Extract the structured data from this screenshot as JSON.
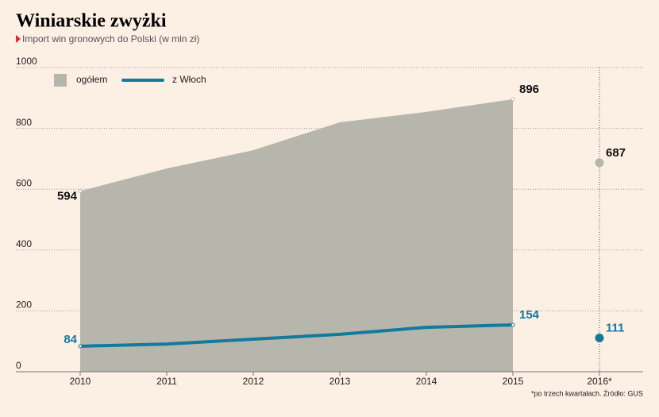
{
  "chart_data": {
    "type": "area-line",
    "title": "Winiarskie zwyżki",
    "subtitle": "Import win gronowych do Polski (w mln zł)",
    "footnote": "*po trzech kwartałach. Źródło: GUS",
    "categories": [
      "2010",
      "2011",
      "2012",
      "2013",
      "2014",
      "2015",
      "2016*"
    ],
    "series": [
      {
        "name": "ogółem",
        "kind": "area",
        "color": "#b7b6ac",
        "values": [
          594,
          668,
          728,
          820,
          854,
          896,
          687
        ]
      },
      {
        "name": "z Włoch",
        "kind": "line",
        "color": "#137a9e",
        "values": [
          84,
          91,
          107,
          123,
          146,
          154,
          111
        ]
      }
    ],
    "dot_from": 6,
    "data_labels": [
      0,
      5,
      6
    ],
    "ylim": [
      0,
      1000
    ],
    "yticks": [
      0,
      200,
      400,
      600,
      800,
      1000
    ],
    "grid": true
  }
}
